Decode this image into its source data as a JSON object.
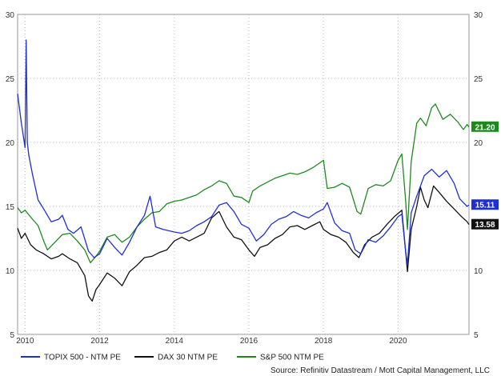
{
  "chart_data": {
    "type": "line",
    "title": "",
    "xlabel": "",
    "ylabel": "",
    "x_ticks": [
      "2010",
      "2012",
      "2014",
      "2016",
      "2018",
      "2020"
    ],
    "y_ticks": [
      "5",
      "10",
      "15",
      "20",
      "25",
      "30"
    ],
    "xlim": [
      2009.8,
      2021.9
    ],
    "ylim": [
      5,
      30
    ],
    "grid": true,
    "legend_position": "bottom-left",
    "source": "Source: Refinitiv Datastream / Mott Capital Management, LLC",
    "series": [
      {
        "name": "TOPIX 500 - NTM PE",
        "color": "#1f2fd6",
        "last_label": "15.11",
        "points": [
          [
            2009.8,
            23.8
          ],
          [
            2009.9,
            21.5
          ],
          [
            2010.0,
            19.6
          ],
          [
            2010.03,
            28.0
          ],
          [
            2010.06,
            20.0
          ],
          [
            2010.1,
            19.0
          ],
          [
            2010.2,
            17.5
          ],
          [
            2010.35,
            15.5
          ],
          [
            2010.5,
            14.8
          ],
          [
            2010.7,
            13.8
          ],
          [
            2010.9,
            14.0
          ],
          [
            2011.0,
            14.3
          ],
          [
            2011.15,
            13.2
          ],
          [
            2011.3,
            12.9
          ],
          [
            2011.5,
            13.4
          ],
          [
            2011.7,
            11.5
          ],
          [
            2011.85,
            11.0
          ],
          [
            2012.0,
            11.3
          ],
          [
            2012.2,
            12.5
          ],
          [
            2012.4,
            11.8
          ],
          [
            2012.6,
            11.2
          ],
          [
            2012.8,
            12.2
          ],
          [
            2013.0,
            13.4
          ],
          [
            2013.2,
            14.3
          ],
          [
            2013.35,
            15.8
          ],
          [
            2013.5,
            13.4
          ],
          [
            2013.7,
            13.2
          ],
          [
            2014.0,
            13.0
          ],
          [
            2014.2,
            12.9
          ],
          [
            2014.4,
            13.1
          ],
          [
            2014.6,
            13.5
          ],
          [
            2014.8,
            13.8
          ],
          [
            2015.0,
            14.2
          ],
          [
            2015.2,
            15.1
          ],
          [
            2015.4,
            15.3
          ],
          [
            2015.6,
            14.6
          ],
          [
            2015.8,
            13.6
          ],
          [
            2016.0,
            13.3
          ],
          [
            2016.2,
            12.3
          ],
          [
            2016.4,
            12.8
          ],
          [
            2016.6,
            13.6
          ],
          [
            2016.8,
            14.0
          ],
          [
            2017.0,
            14.2
          ],
          [
            2017.2,
            14.6
          ],
          [
            2017.4,
            14.3
          ],
          [
            2017.6,
            14.1
          ],
          [
            2017.8,
            14.5
          ],
          [
            2018.0,
            14.8
          ],
          [
            2018.1,
            15.3
          ],
          [
            2018.3,
            13.7
          ],
          [
            2018.5,
            13.1
          ],
          [
            2018.7,
            12.9
          ],
          [
            2018.85,
            11.6
          ],
          [
            2019.0,
            11.3
          ],
          [
            2019.2,
            12.4
          ],
          [
            2019.4,
            12.2
          ],
          [
            2019.6,
            12.7
          ],
          [
            2019.8,
            13.4
          ],
          [
            2020.0,
            14.2
          ],
          [
            2020.1,
            14.4
          ],
          [
            2020.2,
            11.5
          ],
          [
            2020.25,
            10.5
          ],
          [
            2020.35,
            14.5
          ],
          [
            2020.5,
            15.8
          ],
          [
            2020.7,
            17.4
          ],
          [
            2020.9,
            17.9
          ],
          [
            2021.1,
            17.3
          ],
          [
            2021.3,
            17.8
          ],
          [
            2021.5,
            16.8
          ],
          [
            2021.65,
            15.6
          ],
          [
            2021.75,
            15.3
          ],
          [
            2021.85,
            15.0
          ],
          [
            2021.9,
            15.11
          ]
        ]
      },
      {
        "name": "DAX 30 NTM PE",
        "color": "#111111",
        "last_label": "13.58",
        "points": [
          [
            2009.8,
            13.3
          ],
          [
            2009.9,
            12.5
          ],
          [
            2010.0,
            12.9
          ],
          [
            2010.15,
            12.0
          ],
          [
            2010.3,
            11.6
          ],
          [
            2010.5,
            11.3
          ],
          [
            2010.7,
            10.9
          ],
          [
            2010.9,
            11.1
          ],
          [
            2011.0,
            11.3
          ],
          [
            2011.2,
            10.9
          ],
          [
            2011.4,
            10.6
          ],
          [
            2011.6,
            9.6
          ],
          [
            2011.7,
            8.0
          ],
          [
            2011.8,
            7.6
          ],
          [
            2011.9,
            8.5
          ],
          [
            2012.0,
            8.9
          ],
          [
            2012.2,
            9.8
          ],
          [
            2012.4,
            9.4
          ],
          [
            2012.6,
            8.8
          ],
          [
            2012.8,
            9.9
          ],
          [
            2013.0,
            10.4
          ],
          [
            2013.2,
            11.0
          ],
          [
            2013.4,
            11.1
          ],
          [
            2013.6,
            11.4
          ],
          [
            2013.8,
            11.6
          ],
          [
            2014.0,
            12.3
          ],
          [
            2014.2,
            12.6
          ],
          [
            2014.4,
            12.3
          ],
          [
            2014.6,
            12.6
          ],
          [
            2014.8,
            12.9
          ],
          [
            2015.0,
            14.1
          ],
          [
            2015.2,
            14.6
          ],
          [
            2015.4,
            13.4
          ],
          [
            2015.6,
            12.6
          ],
          [
            2015.8,
            12.4
          ],
          [
            2016.0,
            11.6
          ],
          [
            2016.15,
            11.1
          ],
          [
            2016.3,
            11.8
          ],
          [
            2016.5,
            12.0
          ],
          [
            2016.7,
            12.5
          ],
          [
            2016.9,
            12.8
          ],
          [
            2017.1,
            13.4
          ],
          [
            2017.3,
            13.5
          ],
          [
            2017.5,
            13.2
          ],
          [
            2017.7,
            13.5
          ],
          [
            2017.9,
            13.8
          ],
          [
            2018.0,
            13.2
          ],
          [
            2018.2,
            12.8
          ],
          [
            2018.4,
            12.6
          ],
          [
            2018.6,
            12.2
          ],
          [
            2018.8,
            11.4
          ],
          [
            2018.95,
            11.0
          ],
          [
            2019.1,
            12.0
          ],
          [
            2019.3,
            12.6
          ],
          [
            2019.5,
            12.9
          ],
          [
            2019.7,
            13.6
          ],
          [
            2019.9,
            14.2
          ],
          [
            2020.1,
            14.7
          ],
          [
            2020.2,
            11.5
          ],
          [
            2020.25,
            9.9
          ],
          [
            2020.35,
            13.2
          ],
          [
            2020.5,
            15.0
          ],
          [
            2020.6,
            16.5
          ],
          [
            2020.7,
            15.5
          ],
          [
            2020.8,
            14.9
          ],
          [
            2020.95,
            16.6
          ],
          [
            2021.1,
            16.1
          ],
          [
            2021.3,
            15.4
          ],
          [
            2021.5,
            14.8
          ],
          [
            2021.7,
            14.2
          ],
          [
            2021.85,
            13.8
          ],
          [
            2021.9,
            13.58
          ]
        ]
      },
      {
        "name": "S&P 500 NTM PE",
        "color": "#1e8a1e",
        "last_label": "21.20",
        "points": [
          [
            2009.8,
            14.9
          ],
          [
            2009.9,
            14.5
          ],
          [
            2010.0,
            14.7
          ],
          [
            2010.2,
            14.0
          ],
          [
            2010.35,
            13.5
          ],
          [
            2010.5,
            12.3
          ],
          [
            2010.6,
            11.6
          ],
          [
            2010.8,
            12.2
          ],
          [
            2011.0,
            12.8
          ],
          [
            2011.2,
            12.9
          ],
          [
            2011.4,
            12.3
          ],
          [
            2011.6,
            11.6
          ],
          [
            2011.75,
            10.6
          ],
          [
            2011.9,
            11.1
          ],
          [
            2012.0,
            11.5
          ],
          [
            2012.2,
            12.6
          ],
          [
            2012.4,
            12.8
          ],
          [
            2012.6,
            12.2
          ],
          [
            2012.8,
            12.6
          ],
          [
            2013.0,
            13.4
          ],
          [
            2013.2,
            14.0
          ],
          [
            2013.4,
            14.5
          ],
          [
            2013.6,
            14.6
          ],
          [
            2013.8,
            15.2
          ],
          [
            2014.0,
            15.4
          ],
          [
            2014.2,
            15.5
          ],
          [
            2014.4,
            15.7
          ],
          [
            2014.6,
            15.9
          ],
          [
            2014.8,
            16.3
          ],
          [
            2015.0,
            16.6
          ],
          [
            2015.2,
            17.0
          ],
          [
            2015.4,
            16.8
          ],
          [
            2015.6,
            15.8
          ],
          [
            2015.8,
            15.7
          ],
          [
            2016.0,
            15.3
          ],
          [
            2016.1,
            16.2
          ],
          [
            2016.3,
            16.6
          ],
          [
            2016.5,
            16.9
          ],
          [
            2016.7,
            17.2
          ],
          [
            2016.9,
            17.4
          ],
          [
            2017.1,
            17.6
          ],
          [
            2017.3,
            17.5
          ],
          [
            2017.5,
            17.7
          ],
          [
            2017.7,
            18.0
          ],
          [
            2017.9,
            18.4
          ],
          [
            2018.0,
            18.6
          ],
          [
            2018.1,
            16.4
          ],
          [
            2018.3,
            16.5
          ],
          [
            2018.5,
            16.8
          ],
          [
            2018.7,
            16.5
          ],
          [
            2018.9,
            14.6
          ],
          [
            2019.0,
            14.4
          ],
          [
            2019.2,
            16.4
          ],
          [
            2019.4,
            16.7
          ],
          [
            2019.6,
            16.6
          ],
          [
            2019.8,
            17.0
          ],
          [
            2020.0,
            18.6
          ],
          [
            2020.1,
            19.1
          ],
          [
            2020.2,
            15.5
          ],
          [
            2020.25,
            13.2
          ],
          [
            2020.35,
            18.5
          ],
          [
            2020.5,
            21.5
          ],
          [
            2020.6,
            21.9
          ],
          [
            2020.75,
            21.3
          ],
          [
            2020.9,
            22.7
          ],
          [
            2021.0,
            23.0
          ],
          [
            2021.2,
            21.8
          ],
          [
            2021.4,
            22.2
          ],
          [
            2021.6,
            21.6
          ],
          [
            2021.75,
            21.0
          ],
          [
            2021.85,
            21.4
          ],
          [
            2021.9,
            21.2
          ]
        ]
      }
    ]
  }
}
